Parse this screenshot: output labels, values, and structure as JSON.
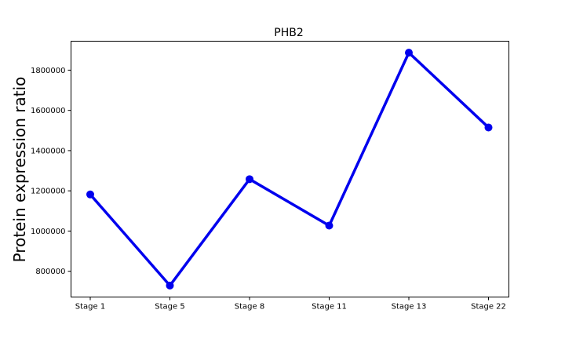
{
  "chart_data": {
    "type": "line",
    "title": "PHB2",
    "xlabel": "",
    "ylabel": "Protein expression ratio",
    "categories": [
      "Stage 1",
      "Stage 5",
      "Stage 8",
      "Stage 11",
      "Stage 13",
      "Stage 22"
    ],
    "series": [
      {
        "values": [
          1182000,
          729000,
          1258000,
          1027000,
          1887000,
          1515000
        ]
      }
    ],
    "y_ticks": [
      800000,
      1000000,
      1200000,
      1400000,
      1600000,
      1800000
    ],
    "y_tick_labels": [
      "800000",
      "1000000",
      "1200000",
      "1400000",
      "1600000",
      "1800000"
    ],
    "ylim": [
      672000,
      1944000
    ],
    "grid": false,
    "colors": {
      "line": "#0000ee",
      "axis": "#000000"
    }
  }
}
